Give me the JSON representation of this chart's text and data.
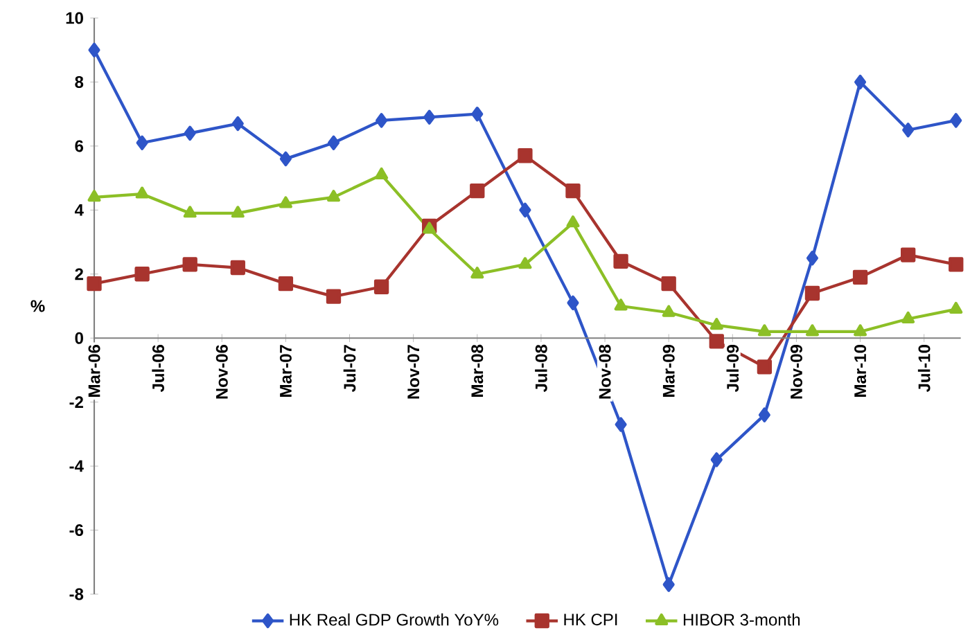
{
  "chart_data": {
    "type": "line",
    "ylabel": "%",
    "x": [
      "2006-03",
      "2006-06",
      "2006-09",
      "2006-12",
      "2007-03",
      "2007-06",
      "2007-09",
      "2007-12",
      "2008-03",
      "2008-06",
      "2008-09",
      "2008-12",
      "2009-03",
      "2009-06",
      "2009-09",
      "2009-12",
      "2010-03",
      "2010-06",
      "2010-09"
    ],
    "series": [
      {
        "name": "HK Real GDP Growth YoY%",
        "color": "#2e55c8",
        "marker": "diamond",
        "values": [
          9.0,
          6.1,
          6.4,
          6.7,
          5.6,
          6.1,
          6.8,
          6.9,
          7.0,
          4.0,
          1.1,
          -2.7,
          -7.7,
          -3.8,
          -2.4,
          2.5,
          8.0,
          6.5,
          6.8
        ]
      },
      {
        "name": "HK CPI",
        "color": "#a8342e",
        "marker": "square",
        "values": [
          1.7,
          2.0,
          2.3,
          2.2,
          1.7,
          1.3,
          1.6,
          3.5,
          4.6,
          5.7,
          4.6,
          2.4,
          1.7,
          -0.1,
          -0.9,
          1.4,
          1.9,
          2.6,
          2.3
        ]
      },
      {
        "name": "HIBOR 3-month",
        "color": "#8cbf26",
        "marker": "triangle",
        "values": [
          4.4,
          4.5,
          3.9,
          3.9,
          4.2,
          4.4,
          5.1,
          3.4,
          2.0,
          2.3,
          3.6,
          1.0,
          0.8,
          0.4,
          0.2,
          0.2,
          0.2,
          0.6,
          0.9
        ]
      }
    ],
    "xlim": [
      "2006-03",
      "2010-09"
    ],
    "xticks": [
      {
        "value": "2006-03",
        "label": "Mar-06"
      },
      {
        "value": "2006-07",
        "label": "Jul-06"
      },
      {
        "value": "2006-11",
        "label": "Nov-06"
      },
      {
        "value": "2007-03",
        "label": "Mar-07"
      },
      {
        "value": "2007-07",
        "label": "Jul-07"
      },
      {
        "value": "2007-11",
        "label": "Nov-07"
      },
      {
        "value": "2008-03",
        "label": "Mar-08"
      },
      {
        "value": "2008-07",
        "label": "Jul-08"
      },
      {
        "value": "2008-11",
        "label": "Nov-08"
      },
      {
        "value": "2009-03",
        "label": "Mar-09"
      },
      {
        "value": "2009-07",
        "label": "Jul-09"
      },
      {
        "value": "2009-11",
        "label": "Nov-09"
      },
      {
        "value": "2010-03",
        "label": "Mar-10"
      },
      {
        "value": "2010-07",
        "label": "Jul-10"
      }
    ],
    "ylim": [
      -8,
      10
    ],
    "yticks": [
      -8,
      -6,
      -4,
      -2,
      0,
      2,
      4,
      6,
      8,
      10
    ],
    "grid": false,
    "legend": "bottom",
    "line_style": "solid"
  }
}
